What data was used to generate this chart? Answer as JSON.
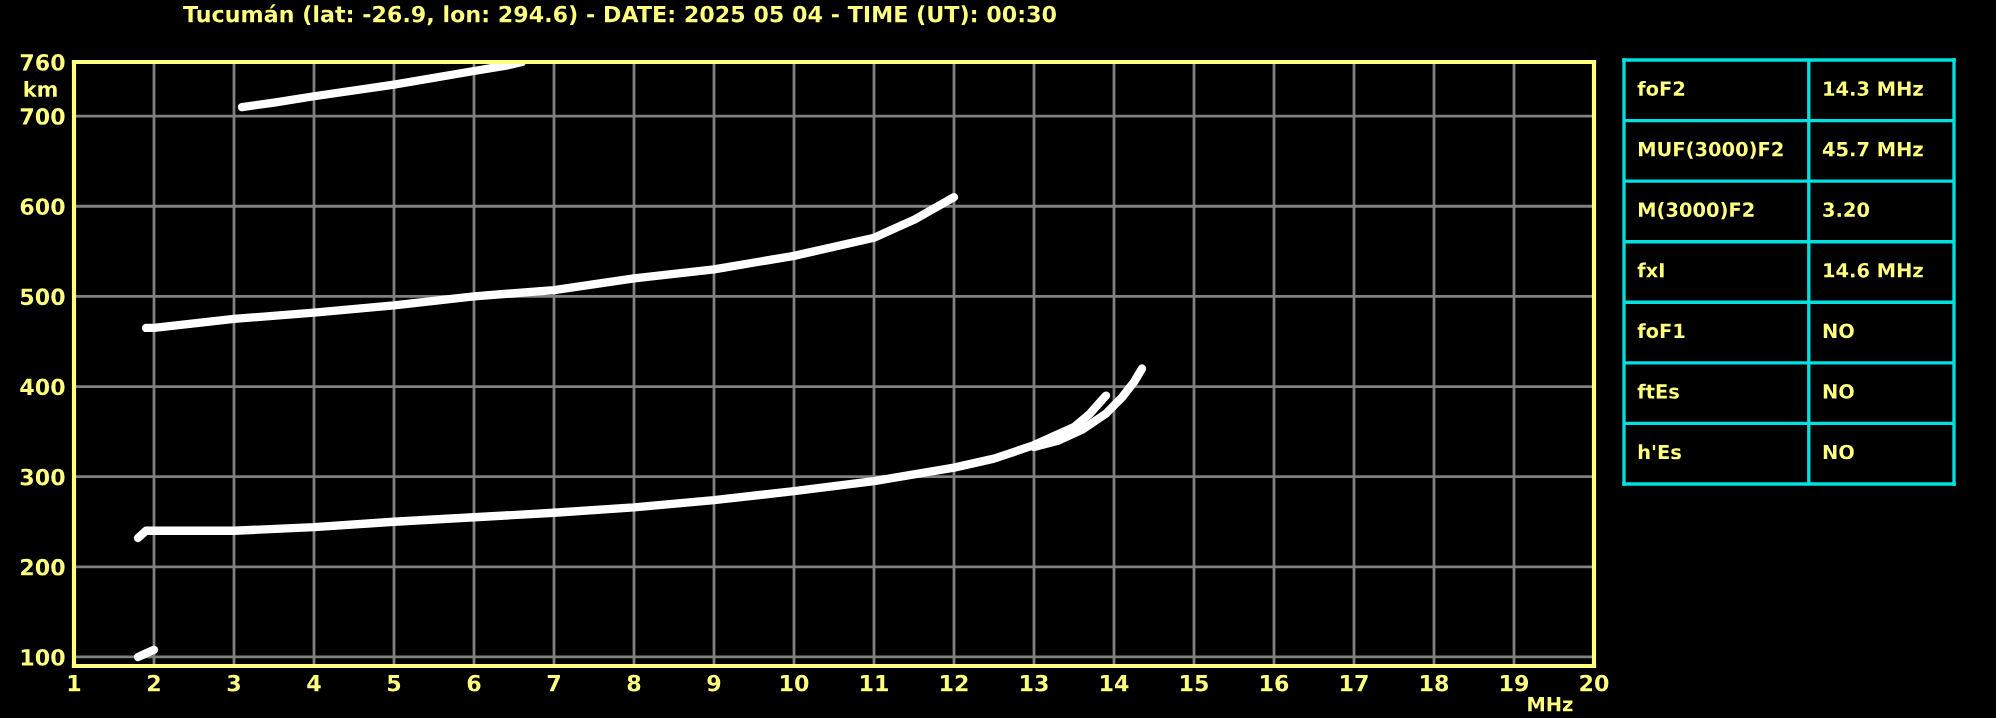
{
  "chart_data": [
    {
      "type": "line",
      "title": "Tucumán (lat: -26.9, lon: 294.6) - DATE: 2025 05 04 - TIME (UT): 00:30",
      "xlabel": "MHz",
      "ylabel": "km",
      "xlim": [
        1,
        20
      ],
      "xticks": [
        1,
        2,
        3,
        4,
        5,
        6,
        7,
        8,
        9,
        10,
        11,
        12,
        13,
        14,
        15,
        16,
        17,
        18,
        19,
        20
      ],
      "ylim": [
        90,
        760
      ],
      "yticks": [
        100,
        200,
        300,
        400,
        500,
        600,
        700,
        760
      ],
      "grid": true,
      "marker": "none",
      "line_style": "solid",
      "series": [
        {
          "color": "#ffffff",
          "x": [
            1.8,
            1.9,
            2,
            3,
            4,
            5,
            6,
            7,
            8,
            9,
            10,
            11,
            12,
            12.5,
            13,
            13.5,
            13.7,
            13.9
          ],
          "values": [
            232,
            240,
            240,
            240,
            244,
            250,
            255,
            260,
            266,
            274,
            284,
            295,
            310,
            320,
            335,
            355,
            370,
            390
          ]
        },
        {
          "color": "#ffffff",
          "x": [
            13,
            13.3,
            13.6,
            13.9,
            14.1,
            14.25,
            14.35
          ],
          "values": [
            333,
            340,
            352,
            370,
            388,
            405,
            420
          ]
        },
        {
          "color": "#ffffff",
          "x": [
            1.9,
            2,
            3,
            4,
            5,
            6,
            7,
            8,
            9,
            10,
            11,
            11.5,
            12
          ],
          "values": [
            465,
            465,
            475,
            482,
            490,
            500,
            507,
            520,
            530,
            545,
            565,
            585,
            610
          ]
        },
        {
          "color": "#ffffff",
          "x": [
            3.1,
            3.5,
            4,
            5,
            6,
            6.4,
            6.6
          ],
          "values": [
            710,
            715,
            722,
            735,
            750,
            756,
            760
          ]
        },
        {
          "color": "#ffffff",
          "x": [
            1.8,
            1.9,
            2.0
          ],
          "values": [
            100,
            104,
            108
          ]
        }
      ]
    },
    {
      "type": "other",
      "annotations": [
        "foF2",
        "14.3 MHz",
        "MUF(3000)F2",
        "45.7 MHz",
        "M(3000)F2",
        "3.20",
        "fxI",
        "14.6 MHz",
        "foF1",
        "NO",
        "ftEs",
        "NO",
        "h'Es",
        "NO"
      ]
    }
  ]
}
